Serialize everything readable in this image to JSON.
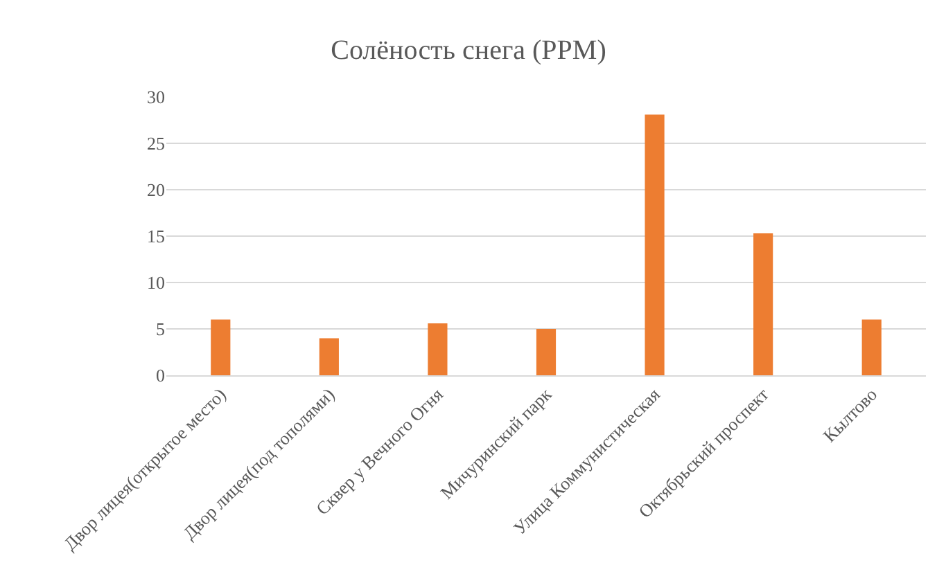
{
  "chart_data": {
    "type": "bar",
    "title": "Солёность снега (PPM)",
    "categories": [
      "Двор лицея(открытое место)",
      "Двор лицея(под тополями)",
      "Сквер у Вечного Огня",
      "Мичуринский парк",
      "Улица Коммунистическая",
      "Октябрьский проспект",
      "Кылтово"
    ],
    "values": [
      6,
      4,
      5.6,
      5,
      28.1,
      15.3,
      6
    ],
    "color": "#ed7d31",
    "ylim": [
      0,
      30
    ],
    "yticks": [
      0,
      5,
      10,
      15,
      20,
      25,
      30
    ],
    "grid": "y",
    "legend": false
  }
}
